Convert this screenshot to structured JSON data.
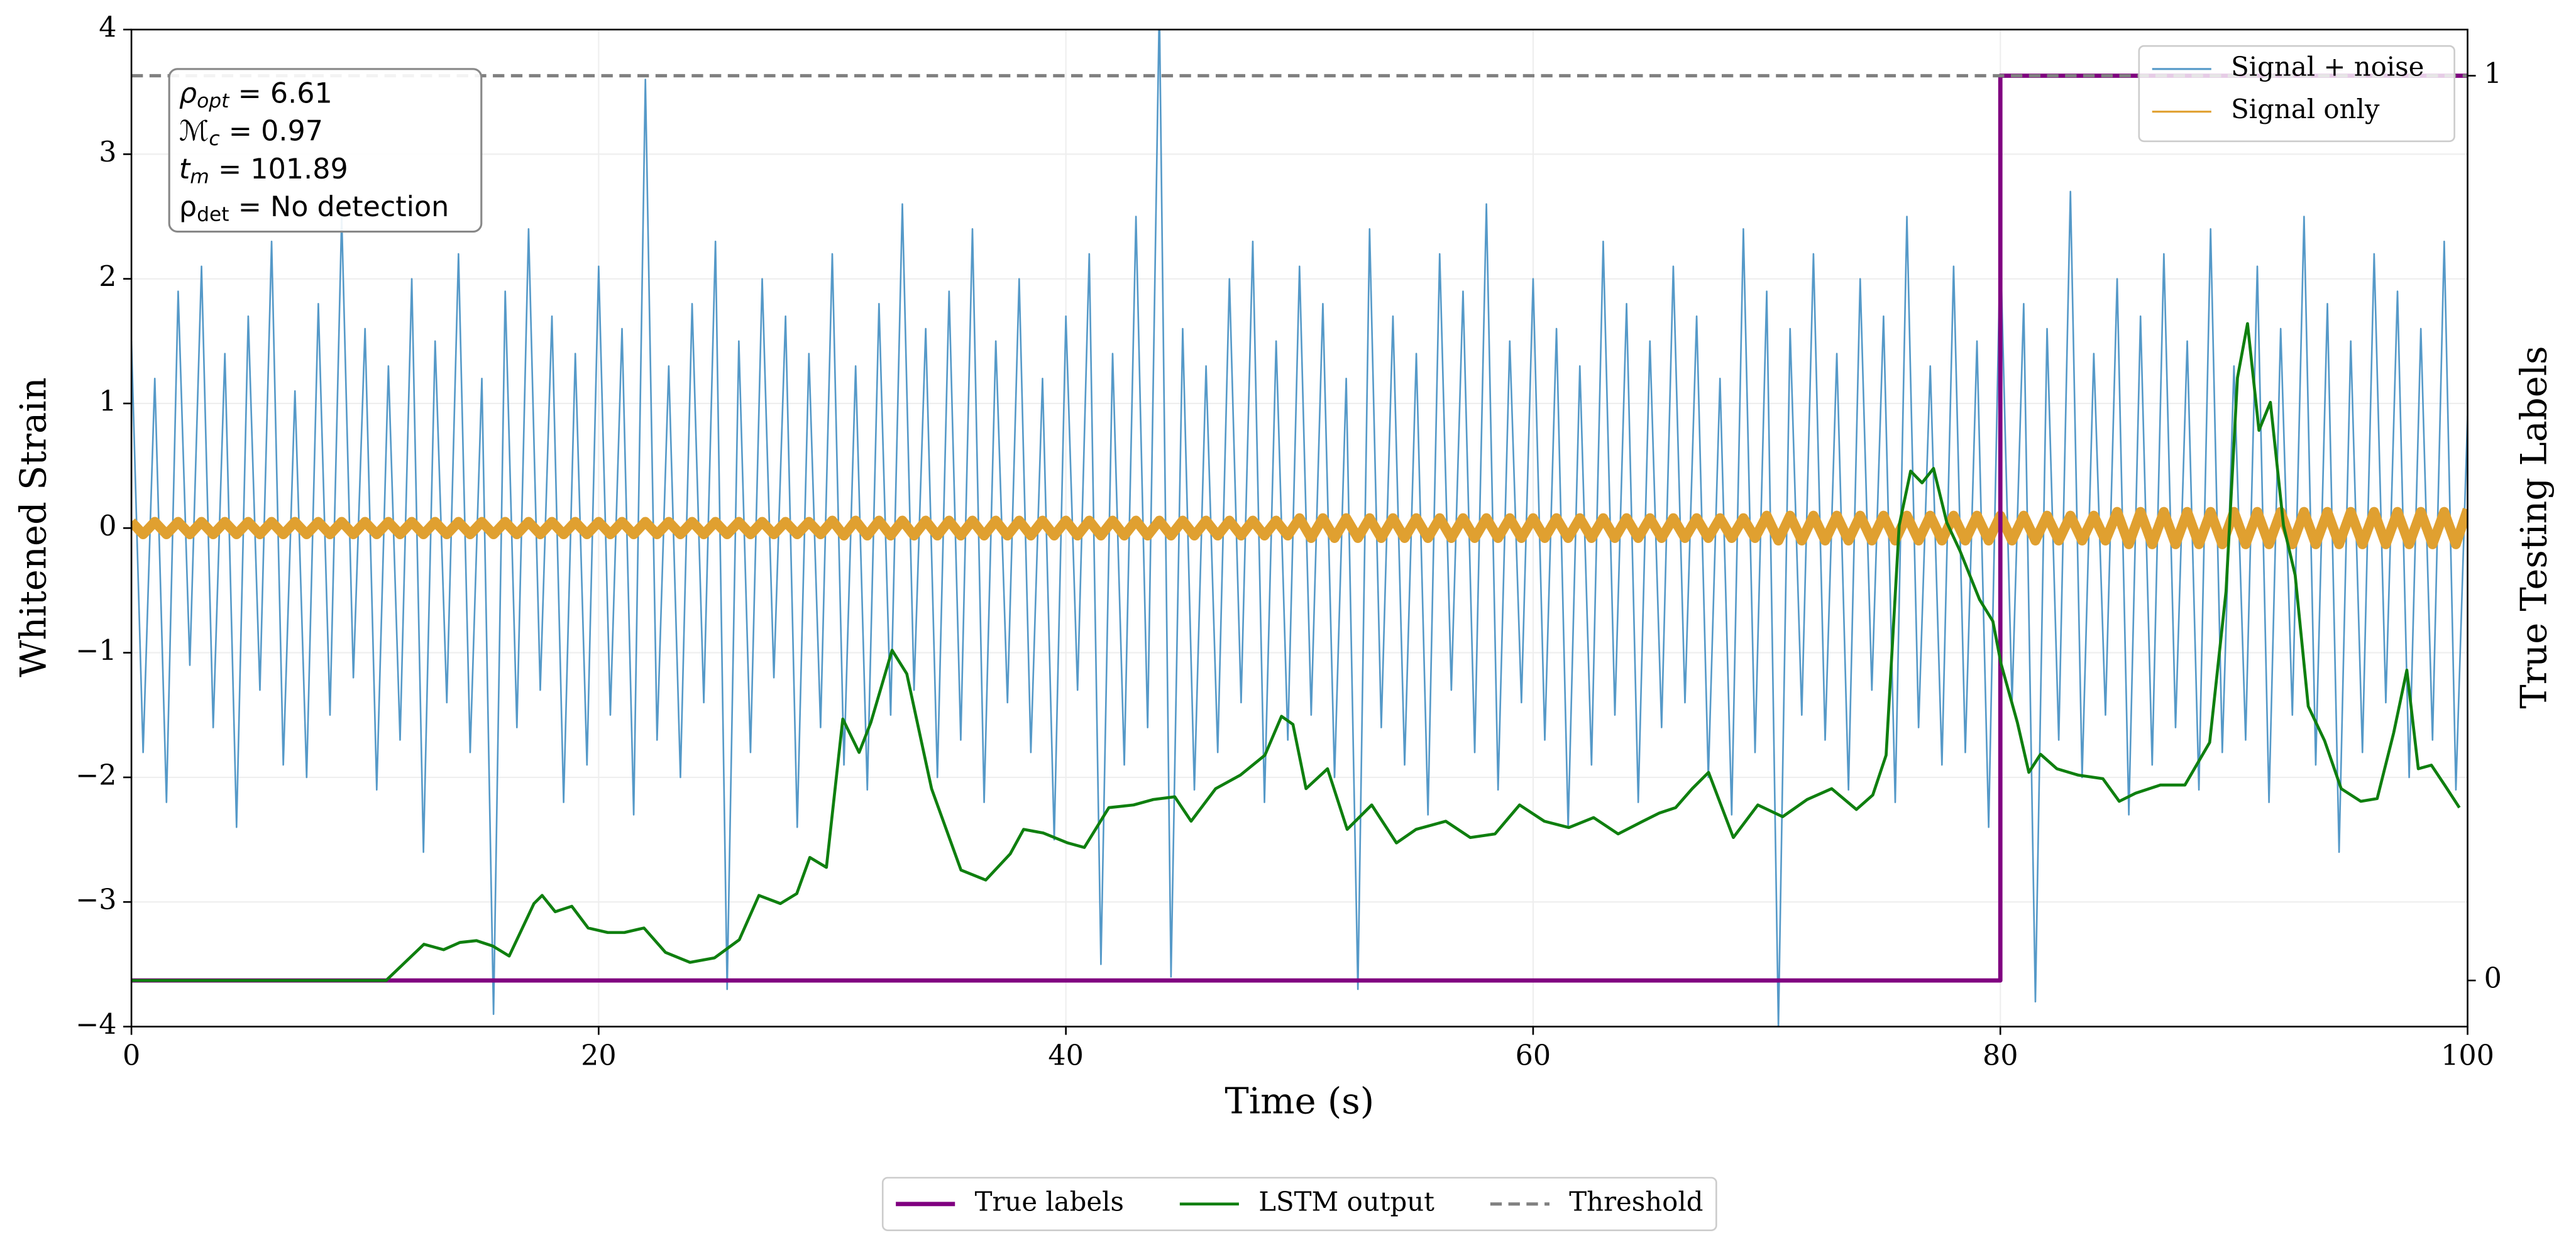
{
  "chart_data": {
    "type": "line",
    "xlabel": "Time (s)",
    "ylabel": "Whitened Strain",
    "y2label": "True Testing Labels",
    "xlim": [
      0,
      100
    ],
    "xticks": [
      0,
      20,
      40,
      60,
      80,
      100
    ],
    "ylim": [
      -4,
      4
    ],
    "yticks": [
      -4,
      -3,
      -2,
      -1,
      0,
      1,
      2,
      3,
      4
    ],
    "y2lim": [
      -0.051,
      1.051
    ],
    "y2ticks": [
      0,
      1
    ],
    "grid": true,
    "annotation": [
      {
        "symbol": "ρ",
        "sub": "opt",
        "text": " = 6.61"
      },
      {
        "symbol": "ℳ",
        "sub": "c",
        "text": " = 0.97"
      },
      {
        "symbol": "t",
        "sub": "m",
        "text": " = 101.89"
      },
      {
        "symbol": "ρ",
        "sub": "det",
        "text": " = No detection"
      }
    ],
    "series": [
      {
        "name": "Signal + noise",
        "color": "#5599c8",
        "legend": "upper right",
        "x": [
          0,
          0.5,
          1,
          1.5,
          2,
          2.5,
          3,
          3.5,
          4,
          4.5,
          5,
          5.5,
          6,
          6.5,
          7,
          7.5,
          8,
          8.5,
          9,
          9.5,
          10,
          10.5,
          11,
          11.5,
          12,
          12.5,
          13,
          13.5,
          14,
          14.5,
          15,
          15.5,
          16,
          16.5,
          17,
          17.5,
          18,
          18.5,
          19,
          19.5,
          20,
          20.5,
          21,
          21.5,
          22,
          22.5,
          23,
          23.5,
          24,
          24.5,
          25,
          25.5,
          26,
          26.5,
          27,
          27.5,
          28,
          28.5,
          29,
          29.5,
          30,
          30.5,
          31,
          31.5,
          32,
          32.5,
          33,
          33.5,
          34,
          34.5,
          35,
          35.5,
          36,
          36.5,
          37,
          37.5,
          38,
          38.5,
          39,
          39.5,
          40,
          40.5,
          41,
          41.5,
          42,
          42.5,
          43,
          43.5,
          44,
          44.5,
          45,
          45.5,
          46,
          46.5,
          47,
          47.5,
          48,
          48.5,
          49,
          49.5,
          50,
          50.5,
          51,
          51.5,
          52,
          52.5,
          53,
          53.5,
          54,
          54.5,
          55,
          55.5,
          56,
          56.5,
          57,
          57.5,
          58,
          58.5,
          59,
          59.5,
          60,
          60.5,
          61,
          61.5,
          62,
          62.5,
          63,
          63.5,
          64,
          64.5,
          65,
          65.5,
          66,
          66.5,
          67,
          67.5,
          68,
          68.5,
          69,
          69.5,
          70,
          70.5,
          71,
          71.5,
          72,
          72.5,
          73,
          73.5,
          74,
          74.5,
          75,
          75.5,
          76,
          76.5,
          77,
          77.5,
          78,
          78.5,
          79,
          79.5,
          80,
          80.5,
          81,
          81.5,
          82,
          82.5,
          83,
          83.5,
          84,
          84.5,
          85,
          85.5,
          86,
          86.5,
          87,
          87.5,
          88,
          88.5,
          89,
          89.5,
          90,
          90.5,
          91,
          91.5,
          92,
          92.5,
          93,
          93.5,
          94,
          94.5,
          95,
          95.5,
          96,
          96.5,
          97,
          97.5,
          98,
          98.5,
          99,
          99.5,
          100
        ],
        "values": [
          1.5,
          -1.8,
          1.2,
          -2.2,
          1.9,
          -1.1,
          2.1,
          -1.6,
          1.4,
          -2.4,
          1.7,
          -1.3,
          2.3,
          -1.9,
          1.1,
          -2.0,
          1.8,
          -1.5,
          2.5,
          -1.2,
          1.6,
          -2.1,
          1.3,
          -1.7,
          2.0,
          -2.6,
          1.5,
          -1.4,
          2.2,
          -1.8,
          1.2,
          -3.9,
          1.9,
          -1.6,
          2.4,
          -1.3,
          1.7,
          -2.2,
          1.4,
          -1.9,
          2.1,
          -1.5,
          1.6,
          -2.3,
          3.6,
          -1.7,
          1.3,
          -2.0,
          1.8,
          -1.4,
          2.3,
          -3.7,
          1.5,
          -1.8,
          2.0,
          -1.2,
          1.7,
          -2.4,
          1.4,
          -1.6,
          2.2,
          -1.9,
          1.3,
          -2.1,
          1.8,
          -1.5,
          2.6,
          -1.3,
          1.6,
          -2.0,
          1.9,
          -1.7,
          2.4,
          -2.2,
          1.5,
          -1.4,
          2.0,
          -1.8,
          1.2,
          -2.5,
          1.7,
          -1.3,
          2.2,
          -3.5,
          1.4,
          -1.9,
          2.5,
          -1.6,
          4.2,
          -3.6,
          1.6,
          -2.1,
          1.3,
          -1.8,
          2.0,
          -1.4,
          2.3,
          -2.2,
          1.5,
          -1.7,
          2.1,
          -1.5,
          1.8,
          -2.0,
          1.2,
          -3.7,
          2.4,
          -1.6,
          1.7,
          -1.9,
          1.4,
          -2.3,
          2.2,
          -1.3,
          1.9,
          -1.8,
          2.6,
          -2.1,
          1.5,
          -1.4,
          2.0,
          -1.7,
          1.6,
          -2.4,
          1.3,
          -1.9,
          2.3,
          -1.5,
          1.8,
          -2.2,
          1.5,
          -1.6,
          2.1,
          -1.4,
          1.7,
          -2.0,
          1.2,
          -2.3,
          2.4,
          -1.8,
          1.9,
          -4.0,
          1.6,
          -1.5,
          2.2,
          -1.7,
          1.4,
          -2.1,
          2.0,
          -1.3,
          1.7,
          -2.2,
          2.5,
          -1.6,
          1.3,
          -1.9,
          2.1,
          -1.8,
          1.5,
          -2.4,
          2.3,
          -1.4,
          1.8,
          -3.8,
          1.6,
          -1.7,
          2.7,
          -2.0,
          1.4,
          -1.5,
          2.0,
          -2.3,
          1.7,
          -1.9,
          2.2,
          -1.6,
          1.5,
          -2.1,
          2.4,
          -1.8,
          1.3,
          -1.7,
          2.1,
          -2.2,
          1.6,
          -1.5,
          2.5,
          -1.9,
          1.8,
          -2.6,
          1.5,
          -1.8,
          2.2,
          -1.4,
          1.9,
          -2.0,
          1.6,
          -1.7,
          2.3,
          -2.1,
          0.9
        ]
      },
      {
        "name": "Signal only",
        "color": "#e0a030",
        "legend": "upper right",
        "x": [
          0,
          0.5,
          1,
          1.5,
          2,
          2.5,
          3,
          3.5,
          4,
          4.5,
          5,
          5.5,
          6,
          6.5,
          7,
          7.5,
          8,
          8.5,
          9,
          9.5,
          10,
          10.5,
          11,
          11.5,
          12,
          12.5,
          13,
          13.5,
          14,
          14.5,
          15,
          15.5,
          16,
          16.5,
          17,
          17.5,
          18,
          18.5,
          19,
          19.5,
          20,
          20.5,
          21,
          21.5,
          22,
          22.5,
          23,
          23.5,
          24,
          24.5,
          25,
          25.5,
          26,
          26.5,
          27,
          27.5,
          28,
          28.5,
          29,
          29.5,
          30,
          30.5,
          31,
          31.5,
          32,
          32.5,
          33,
          33.5,
          34,
          34.5,
          35,
          35.5,
          36,
          36.5,
          37,
          37.5,
          38,
          38.5,
          39,
          39.5,
          40,
          40.5,
          41,
          41.5,
          42,
          42.5,
          43,
          43.5,
          44,
          44.5,
          45,
          45.5,
          46,
          46.5,
          47,
          47.5,
          48,
          48.5,
          49,
          49.5,
          50,
          50.5,
          51,
          51.5,
          52,
          52.5,
          53,
          53.5,
          54,
          54.5,
          55,
          55.5,
          56,
          56.5,
          57,
          57.5,
          58,
          58.5,
          59,
          59.5,
          60,
          60.5,
          61,
          61.5,
          62,
          62.5,
          63,
          63.5,
          64,
          64.5,
          65,
          65.5,
          66,
          66.5,
          67,
          67.5,
          68,
          68.5,
          69,
          69.5,
          70,
          70.5,
          71,
          71.5,
          72,
          72.5,
          73,
          73.5,
          74,
          74.5,
          75,
          75.5,
          76,
          76.5,
          77,
          77.5,
          78,
          78.5,
          79,
          79.5,
          80,
          80.5,
          81,
          81.5,
          82,
          82.5,
          83,
          83.5,
          84,
          84.5,
          85,
          85.5,
          86,
          86.5,
          87,
          87.5,
          88,
          88.5,
          89,
          89.5,
          90,
          90.5,
          91,
          91.5,
          92,
          92.5,
          93,
          93.5,
          94,
          94.5,
          95,
          95.5,
          96,
          96.5,
          97,
          97.5,
          98,
          98.5,
          99,
          99.5,
          100
        ],
        "values": [
          0.05,
          -0.05,
          0.05,
          -0.05,
          0.05,
          -0.05,
          0.05,
          -0.05,
          0.05,
          -0.05,
          0.05,
          -0.05,
          0.05,
          -0.05,
          0.05,
          -0.05,
          0.05,
          -0.05,
          0.05,
          -0.05,
          0.05,
          -0.05,
          0.05,
          -0.05,
          0.05,
          -0.05,
          0.05,
          -0.05,
          0.05,
          -0.05,
          0.05,
          -0.05,
          0.05,
          -0.05,
          0.05,
          -0.05,
          0.05,
          -0.05,
          0.05,
          -0.05,
          0.05,
          -0.05,
          0.05,
          -0.05,
          0.05,
          -0.05,
          0.05,
          -0.05,
          0.05,
          -0.05,
          0.05,
          -0.05,
          0.05,
          -0.05,
          0.05,
          -0.05,
          0.05,
          -0.05,
          0.05,
          -0.05,
          0.06,
          -0.06,
          0.06,
          -0.06,
          0.06,
          -0.06,
          0.06,
          -0.06,
          0.06,
          -0.06,
          0.06,
          -0.06,
          0.06,
          -0.06,
          0.06,
          -0.06,
          0.06,
          -0.06,
          0.06,
          -0.06,
          0.06,
          -0.06,
          0.06,
          -0.06,
          0.06,
          -0.06,
          0.06,
          -0.06,
          0.06,
          -0.06,
          0.06,
          -0.06,
          0.06,
          -0.06,
          0.06,
          -0.06,
          0.06,
          -0.06,
          0.06,
          -0.06,
          0.08,
          -0.08,
          0.08,
          -0.08,
          0.08,
          -0.08,
          0.08,
          -0.08,
          0.08,
          -0.08,
          0.08,
          -0.08,
          0.08,
          -0.08,
          0.08,
          -0.08,
          0.08,
          -0.08,
          0.08,
          -0.08,
          0.08,
          -0.08,
          0.08,
          -0.08,
          0.08,
          -0.08,
          0.08,
          -0.08,
          0.08,
          -0.08,
          0.08,
          -0.08,
          0.08,
          -0.08,
          0.08,
          -0.08,
          0.08,
          -0.08,
          0.08,
          -0.08,
          0.1,
          -0.1,
          0.1,
          -0.1,
          0.1,
          -0.1,
          0.1,
          -0.1,
          0.1,
          -0.1,
          0.1,
          -0.1,
          0.1,
          -0.1,
          0.1,
          -0.1,
          0.1,
          -0.1,
          0.1,
          -0.1,
          0.1,
          -0.1,
          0.1,
          -0.1,
          0.1,
          -0.1,
          0.1,
          -0.1,
          0.1,
          -0.1,
          0.13,
          -0.13,
          0.13,
          -0.13,
          0.13,
          -0.13,
          0.13,
          -0.13,
          0.13,
          -0.13,
          0.13,
          -0.13,
          0.13,
          -0.13,
          0.13,
          -0.13,
          0.13,
          -0.13,
          0.13,
          -0.13,
          0.13,
          -0.13,
          0.13,
          -0.13,
          0.13,
          -0.13,
          0.13,
          -0.13,
          0.13,
          -0.13,
          0.15
        ]
      },
      {
        "name": "True labels",
        "color": "#800080",
        "axis": "y2",
        "legend": "bottom",
        "x": [
          0,
          80,
          80,
          100
        ],
        "values": [
          0,
          0,
          1,
          1
        ]
      },
      {
        "name": "LSTM output",
        "color": "#0f7f0f",
        "axis": "y2",
        "legend": "bottom",
        "x": [
          0,
          10.9,
          12.52,
          13.36,
          14.06,
          14.77,
          15.47,
          16.17,
          17.23,
          17.58,
          18.14,
          18.85,
          19.55,
          20.39,
          21.1,
          21.94,
          22.86,
          23.91,
          24.96,
          26.02,
          26.86,
          27.78,
          28.48,
          29.04,
          29.75,
          30.45,
          31.15,
          31.65,
          32.56,
          33.19,
          34.25,
          35.51,
          36.57,
          37.62,
          38.19,
          39.03,
          40.08,
          40.79,
          41.84,
          42.9,
          43.74,
          44.66,
          45.36,
          46.41,
          47.47,
          48.52,
          49.23,
          49.72,
          50.28,
          51.2,
          52.04,
          53.09,
          54.15,
          54.99,
          56.26,
          57.31,
          58.37,
          59.42,
          60.48,
          61.53,
          62.59,
          63.64,
          64.7,
          65.4,
          66.1,
          66.81,
          67.51,
          68.57,
          69.62,
          70.68,
          71.73,
          72.78,
          73.84,
          74.54,
          75.11,
          75.67,
          76.16,
          76.65,
          77.14,
          77.71,
          78.27,
          79.11,
          79.68,
          80.03,
          80.73,
          81.22,
          81.72,
          82.42,
          83.33,
          84.39,
          85.09,
          85.79,
          86.85,
          87.9,
          88.96,
          89.66,
          90.15,
          90.58,
          91.07,
          91.56,
          92.12,
          92.62,
          93.18,
          93.88,
          94.59,
          95.43,
          96.13,
          96.84,
          97.4,
          97.89,
          98.45,
          99.02,
          99.65
        ],
        "values": [
          0,
          0,
          0.04,
          0.034,
          0.042,
          0.044,
          0.038,
          0.027,
          0.085,
          0.094,
          0.076,
          0.082,
          0.058,
          0.053,
          0.053,
          0.058,
          0.031,
          0.02,
          0.025,
          0.045,
          0.094,
          0.085,
          0.096,
          0.136,
          0.125,
          0.289,
          0.252,
          0.285,
          0.365,
          0.339,
          0.212,
          0.122,
          0.111,
          0.14,
          0.167,
          0.163,
          0.152,
          0.147,
          0.191,
          0.194,
          0.2,
          0.203,
          0.176,
          0.212,
          0.227,
          0.249,
          0.292,
          0.283,
          0.212,
          0.234,
          0.167,
          0.194,
          0.152,
          0.167,
          0.176,
          0.158,
          0.162,
          0.194,
          0.176,
          0.169,
          0.18,
          0.162,
          0.176,
          0.185,
          0.191,
          0.212,
          0.23,
          0.158,
          0.194,
          0.181,
          0.2,
          0.212,
          0.189,
          0.205,
          0.249,
          0.503,
          0.563,
          0.55,
          0.566,
          0.506,
          0.475,
          0.421,
          0.397,
          0.35,
          0.285,
          0.23,
          0.25,
          0.234,
          0.227,
          0.223,
          0.198,
          0.207,
          0.216,
          0.216,
          0.263,
          0.43,
          0.666,
          0.726,
          0.608,
          0.639,
          0.503,
          0.448,
          0.303,
          0.265,
          0.212,
          0.198,
          0.201,
          0.274,
          0.343,
          0.234,
          0.238,
          0.216,
          0.191
        ]
      }
    ],
    "threshold": {
      "name": "Threshold",
      "value": 1,
      "axis": "y2",
      "color": "#808080",
      "legend": "bottom"
    }
  }
}
